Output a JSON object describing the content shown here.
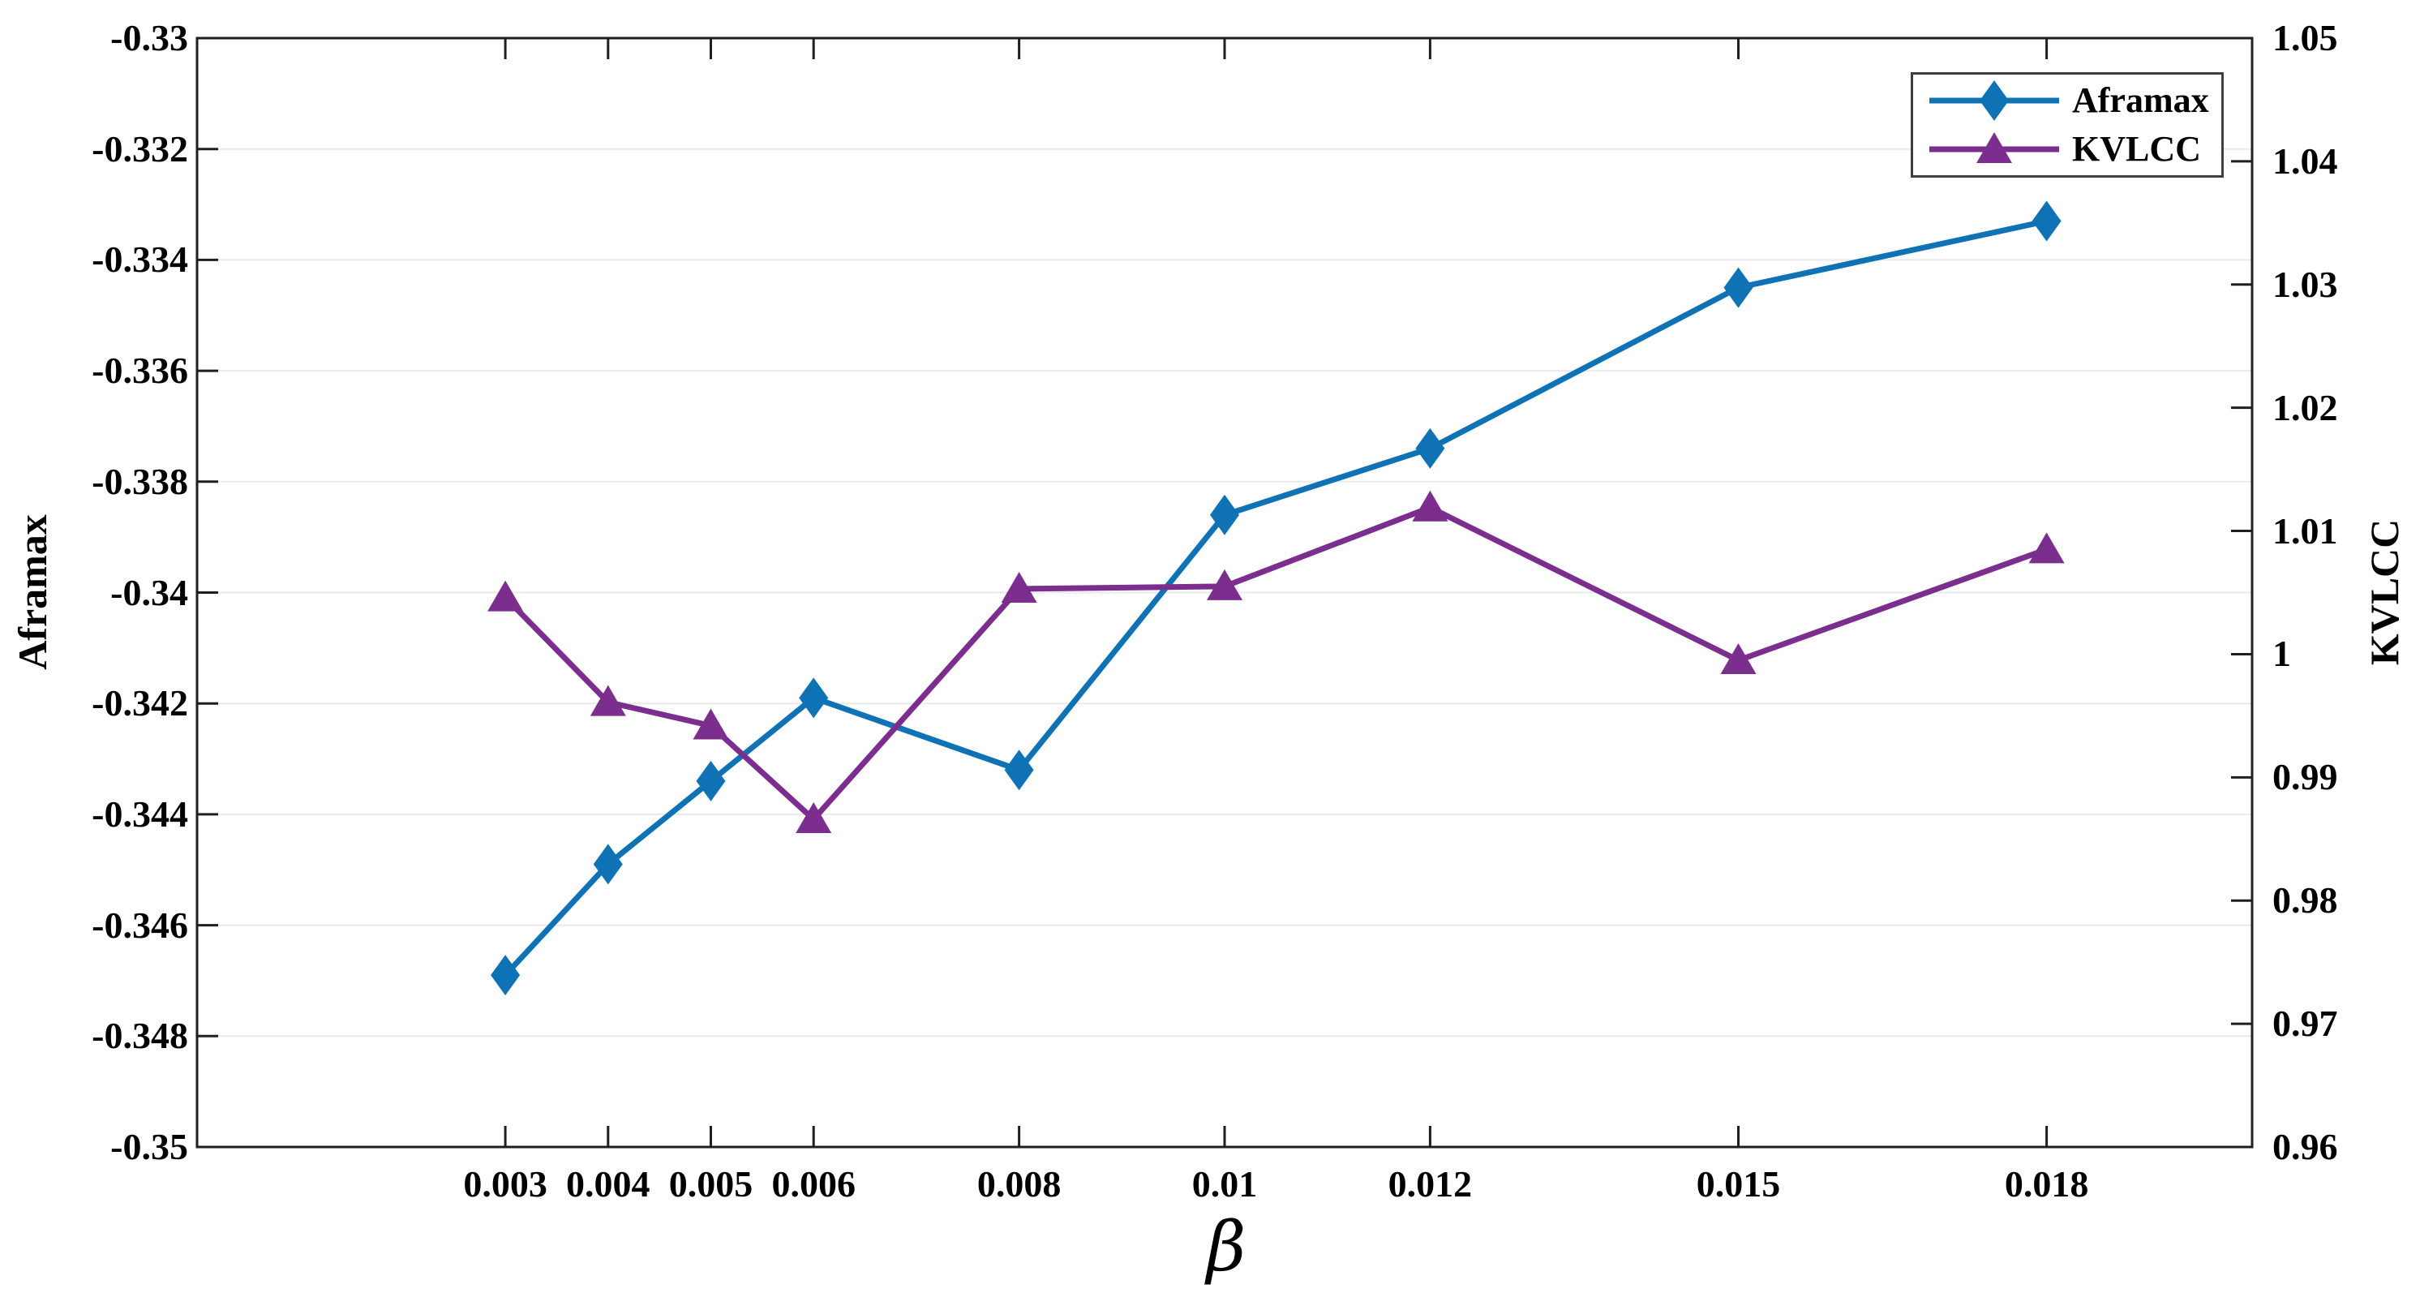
{
  "chart_data": {
    "type": "line",
    "x": [
      0.003,
      0.004,
      0.005,
      0.006,
      0.008,
      0.01,
      0.012,
      0.015,
      0.018
    ],
    "x_tick_labels": [
      "0.003",
      "0.004",
      "0.005",
      "0.006",
      "0.008",
      "0.01",
      "0.012",
      "0.015",
      "0.018"
    ],
    "xlabel": "β",
    "xlim": [
      0,
      0.02
    ],
    "grid": "horizontal",
    "legend_position": "top-right",
    "series": [
      {
        "name": "Aframax",
        "axis": "left",
        "marker": "diamond",
        "color": "#0f72b5",
        "values": [
          -0.3469,
          -0.3449,
          -0.3434,
          -0.3419,
          -0.3432,
          -0.3386,
          -0.3374,
          -0.3345,
          -0.3333
        ]
      },
      {
        "name": "KVLCC",
        "axis": "right",
        "marker": "triangle",
        "color": "#7b2e8d",
        "values": [
          1.0046,
          0.9961,
          0.9942,
          0.9866,
          1.0053,
          1.0055,
          1.0119,
          0.9995,
          1.0085
        ]
      }
    ],
    "left_axis": {
      "label": "Aframax",
      "lim": [
        -0.35,
        -0.33
      ],
      "ticks": [
        -0.33,
        -0.332,
        -0.334,
        -0.336,
        -0.338,
        -0.34,
        -0.342,
        -0.344,
        -0.346,
        -0.348,
        -0.35
      ],
      "tick_labels": [
        "-0.33",
        "-0.332",
        "-0.334",
        "-0.336",
        "-0.338",
        "-0.34",
        "-0.342",
        "-0.344",
        "-0.346",
        "-0.348",
        "-0.35"
      ]
    },
    "right_axis": {
      "label": "KVLCC",
      "lim": [
        0.96,
        1.05
      ],
      "ticks": [
        1.05,
        1.04,
        1.03,
        1.02,
        1.01,
        1.0,
        0.99,
        0.98,
        0.97,
        0.96
      ],
      "tick_labels": [
        "1.05",
        "1.04",
        "1.03",
        "1.02",
        "1.01",
        "1",
        "0.99",
        "0.98",
        "0.97",
        "0.96"
      ]
    }
  },
  "legend": {
    "entries": [
      {
        "label": "Aframax"
      },
      {
        "label": "KVLCC"
      }
    ]
  },
  "colors": {
    "aframax_line": "#0f72b5",
    "kvlcc_line": "#7b2e8d",
    "grid_line": "#eaeaea",
    "axis_spine": "#1f1f1f",
    "background": "#ffffff",
    "legend_border": "#3f3f3f"
  }
}
